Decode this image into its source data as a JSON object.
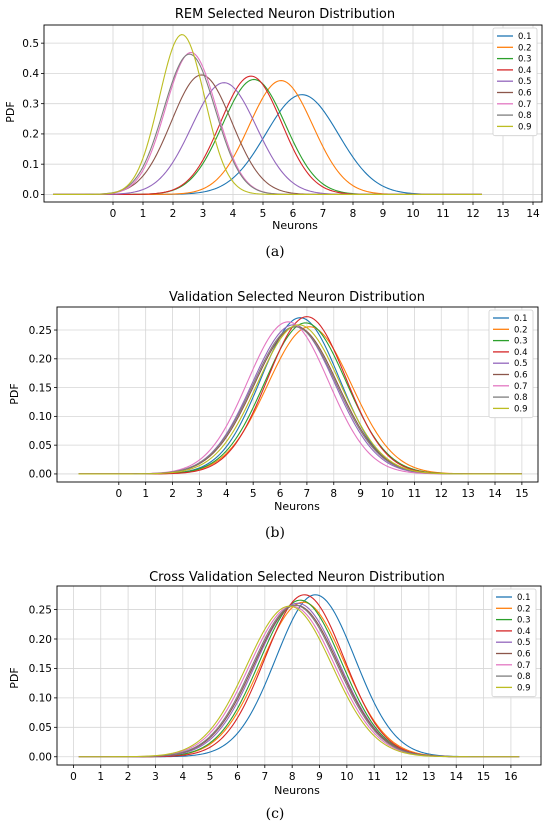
{
  "chart_data": [
    {
      "type": "line",
      "title": "REM Selected Neuron Distribution",
      "xlabel": "Neurons",
      "ylabel": "PDF",
      "xticks": [
        0,
        1,
        2,
        3,
        4,
        5,
        6,
        7,
        8,
        9,
        10,
        11,
        12,
        13,
        14
      ],
      "yticks": [
        0.0,
        0.1,
        0.2,
        0.3,
        0.4,
        0.5
      ],
      "xlim": [
        -2.3,
        14.3
      ],
      "ylim": [
        -0.025,
        0.56
      ],
      "x_range": [
        -2,
        12.3
      ],
      "grid": true,
      "legend": "top-right",
      "caption": "(a)",
      "series": [
        {
          "name": "0.1",
          "mean": 6.3,
          "std": 1.21,
          "color": "#1f77b4"
        },
        {
          "name": "0.2",
          "mean": 5.6,
          "std": 1.06,
          "color": "#ff7f0e"
        },
        {
          "name": "0.3",
          "mean": 4.7,
          "std": 1.05,
          "color": "#2ca02c"
        },
        {
          "name": "0.4",
          "mean": 4.6,
          "std": 1.02,
          "color": "#d62728"
        },
        {
          "name": "0.5",
          "mean": 3.7,
          "std": 1.08,
          "color": "#9467bd"
        },
        {
          "name": "0.6",
          "mean": 2.95,
          "std": 1.01,
          "color": "#8c564b"
        },
        {
          "name": "0.7",
          "mean": 2.6,
          "std": 0.85,
          "color": "#e377c2"
        },
        {
          "name": "0.8",
          "mean": 2.55,
          "std": 0.86,
          "color": "#7f7f7f"
        },
        {
          "name": "0.9",
          "mean": 2.3,
          "std": 0.755,
          "color": "#bcbd22"
        }
      ]
    },
    {
      "type": "line",
      "title": "Validation Selected Neuron Distribution",
      "xlabel": "Neurons",
      "ylabel": "PDF",
      "xticks": [
        0,
        1,
        2,
        3,
        4,
        5,
        6,
        7,
        8,
        9,
        10,
        11,
        12,
        13,
        14,
        15
      ],
      "yticks": [
        0.0,
        0.05,
        0.1,
        0.15,
        0.2,
        0.25
      ],
      "ylabels": [
        "0.00",
        "0.05",
        "0.10",
        "0.15",
        "0.20",
        "0.25"
      ],
      "xlim": [
        -2.3,
        15.6
      ],
      "ylim": [
        -0.014,
        0.29
      ],
      "x_range": [
        -1.5,
        15
      ],
      "grid": true,
      "legend": "top-right",
      "caption": "(b)",
      "series": [
        {
          "name": "0.1",
          "mean": 6.75,
          "std": 1.47,
          "color": "#1f77b4"
        },
        {
          "name": "0.2",
          "mean": 7.1,
          "std": 1.56,
          "color": "#ff7f0e"
        },
        {
          "name": "0.3",
          "mean": 6.95,
          "std": 1.52,
          "color": "#2ca02c"
        },
        {
          "name": "0.4",
          "mean": 7.0,
          "std": 1.46,
          "color": "#d62728"
        },
        {
          "name": "0.5",
          "mean": 6.5,
          "std": 1.54,
          "color": "#9467bd"
        },
        {
          "name": "0.6",
          "mean": 6.6,
          "std": 1.56,
          "color": "#8c564b"
        },
        {
          "name": "0.7",
          "mean": 6.3,
          "std": 1.51,
          "color": "#e377c2"
        },
        {
          "name": "0.8",
          "mean": 6.55,
          "std": 1.56,
          "color": "#7f7f7f"
        },
        {
          "name": "0.9",
          "mean": 6.7,
          "std": 1.54,
          "color": "#bcbd22"
        }
      ]
    },
    {
      "type": "line",
      "title": "Cross Validation Selected Neuron Distribution",
      "xlabel": "Neurons",
      "ylabel": "PDF",
      "xticks": [
        0,
        1,
        2,
        3,
        4,
        5,
        6,
        7,
        8,
        9,
        10,
        11,
        12,
        13,
        14,
        15,
        16
      ],
      "yticks": [
        0.0,
        0.05,
        0.1,
        0.15,
        0.2,
        0.25
      ],
      "ylabels": [
        "0.00",
        "0.05",
        "0.10",
        "0.15",
        "0.20",
        "0.25"
      ],
      "xlim": [
        -0.6,
        17.1
      ],
      "ylim": [
        -0.014,
        0.29
      ],
      "x_range": [
        0.2,
        16.3
      ],
      "grid": true,
      "legend": "top-right",
      "caption": "(c)",
      "series": [
        {
          "name": "0.1",
          "mean": 8.85,
          "std": 1.45,
          "color": "#1f77b4"
        },
        {
          "name": "0.2",
          "mean": 8.4,
          "std": 1.52,
          "color": "#ff7f0e"
        },
        {
          "name": "0.3",
          "mean": 8.3,
          "std": 1.5,
          "color": "#2ca02c"
        },
        {
          "name": "0.4",
          "mean": 8.45,
          "std": 1.45,
          "color": "#d62728"
        },
        {
          "name": "0.5",
          "mean": 8.2,
          "std": 1.53,
          "color": "#9467bd"
        },
        {
          "name": "0.6",
          "mean": 8.15,
          "std": 1.55,
          "color": "#8c564b"
        },
        {
          "name": "0.7",
          "mean": 8.0,
          "std": 1.56,
          "color": "#e377c2"
        },
        {
          "name": "0.8",
          "mean": 8.1,
          "std": 1.55,
          "color": "#7f7f7f"
        },
        {
          "name": "0.9",
          "mean": 7.9,
          "std": 1.56,
          "color": "#bcbd22"
        }
      ]
    }
  ]
}
